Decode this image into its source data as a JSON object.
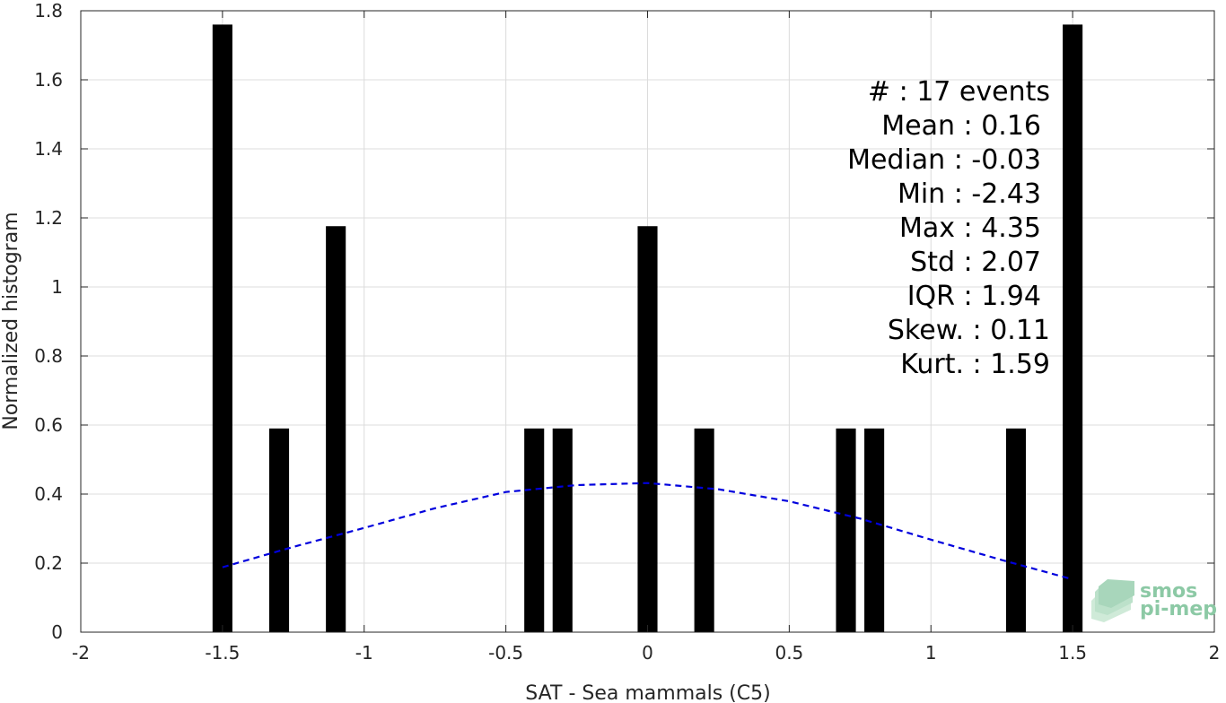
{
  "chart_data": {
    "type": "bar",
    "xlabel": "SAT - Sea mammals (C5)",
    "ylabel": "Normalized histogram",
    "xlim": [
      -2,
      2
    ],
    "ylim": [
      0,
      1.8
    ],
    "xticks": [
      -2,
      -1.5,
      -1,
      -0.5,
      0,
      0.5,
      1,
      1.5,
      2
    ],
    "xtick_labels": [
      "-2",
      "-1.5",
      "-1",
      "-0.5",
      "0",
      "0.5",
      "1",
      "1.5",
      "2"
    ],
    "yticks": [
      0,
      0.2,
      0.4,
      0.6,
      0.8,
      1,
      1.2,
      1.4,
      1.6,
      1.8
    ],
    "ytick_labels": [
      "0",
      "0.2",
      "0.4",
      "0.6",
      "0.8",
      "1",
      "1.2",
      "1.4",
      "1.6",
      "1.8"
    ],
    "grid": true,
    "bar_width": 0.07,
    "bars": [
      {
        "x": -1.5,
        "y": 1.76
      },
      {
        "x": -1.3,
        "y": 0.59
      },
      {
        "x": -1.1,
        "y": 1.176
      },
      {
        "x": -0.4,
        "y": 0.59
      },
      {
        "x": -0.3,
        "y": 0.59
      },
      {
        "x": 0.0,
        "y": 1.176
      },
      {
        "x": 0.2,
        "y": 0.59
      },
      {
        "x": 0.7,
        "y": 0.59
      },
      {
        "x": 0.8,
        "y": 0.59
      },
      {
        "x": 1.3,
        "y": 0.59
      },
      {
        "x": 1.5,
        "y": 1.76
      }
    ],
    "bar_color": "#000000",
    "fit_curve": {
      "style": "dashed",
      "color": "#0000dd",
      "x": [
        -1.5,
        -1.25,
        -1.0,
        -0.75,
        -0.5,
        -0.25,
        0.0,
        0.25,
        0.5,
        0.75,
        1.0,
        1.25,
        1.5
      ],
      "y": [
        0.188,
        0.247,
        0.302,
        0.359,
        0.406,
        0.426,
        0.432,
        0.414,
        0.379,
        0.329,
        0.268,
        0.209,
        0.153
      ]
    },
    "stats_annotation": [
      "#  : 17 events",
      "Mean : 0.16",
      "Median : -0.03",
      "Min : -2.43",
      "Max : 4.35",
      "Std : 2.07",
      "IQR : 1.94",
      "Skew. : 0.11",
      "Kurt. : 1.59"
    ]
  },
  "logo": {
    "line1": "smos",
    "line2": "pi-mep",
    "color": "#8cc9a5"
  }
}
